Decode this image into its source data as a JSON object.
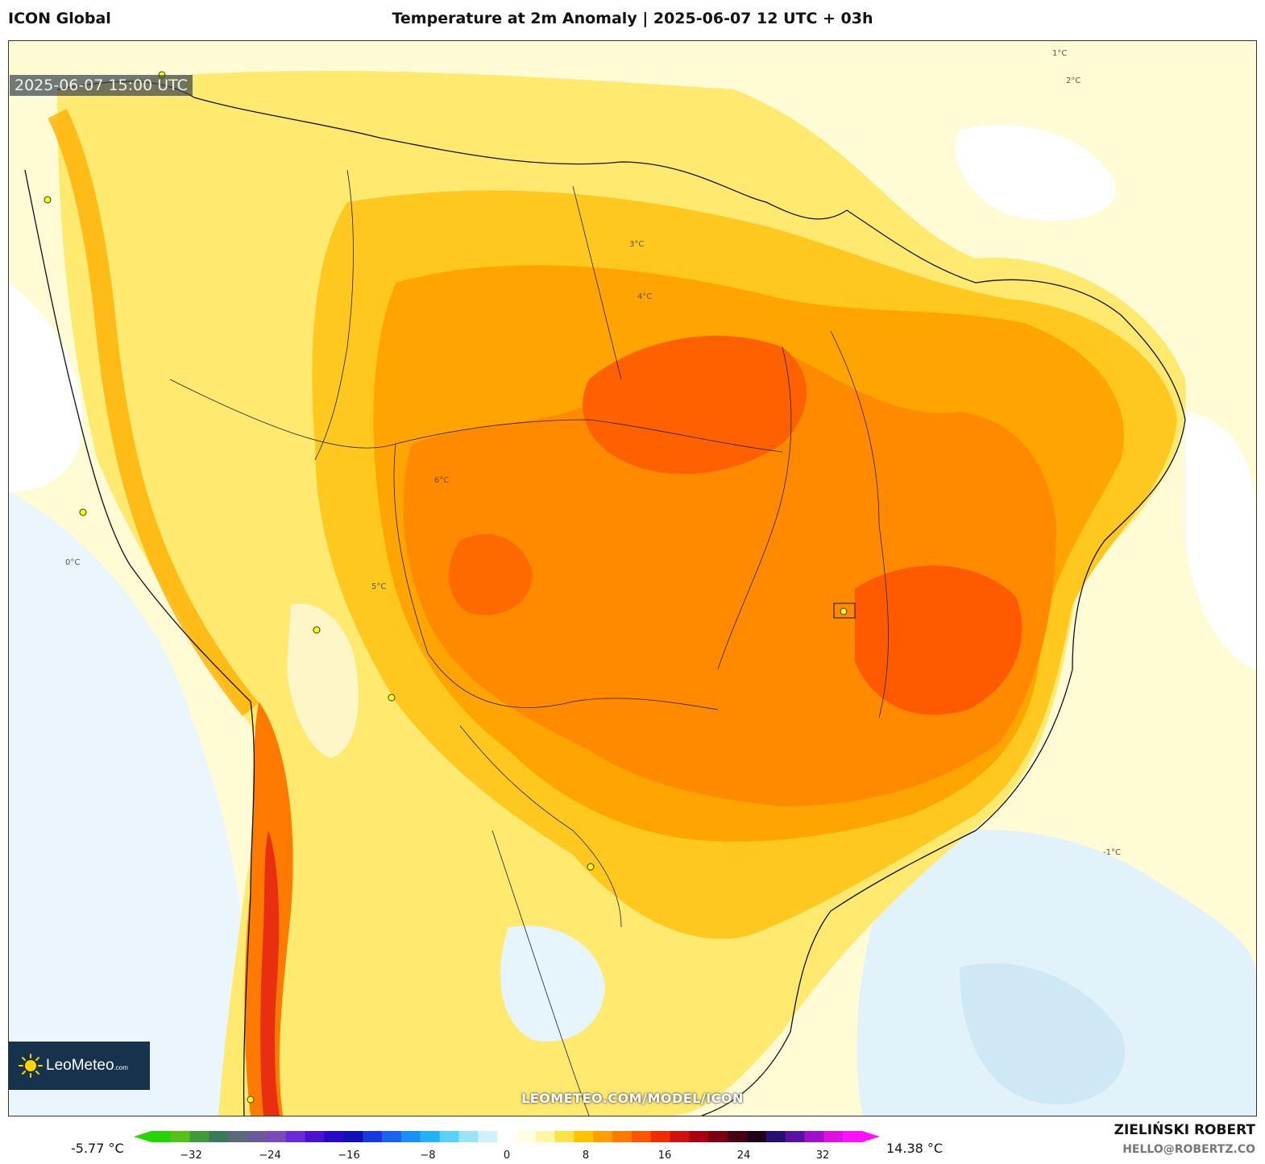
{
  "header": {
    "model": "ICON Global",
    "title": "Temperature at 2m Anomaly | 2025-06-07 12 UTC + 03h"
  },
  "map": {
    "valid_time": "2025-06-07 15:00 UTC",
    "watermark": "LEOMETEO.COM/MODEL/ICON",
    "contour_labels": [
      "0°C",
      "1°C",
      "2°C",
      "3°C",
      "4°C",
      "5°C",
      "6°C",
      "-1°C"
    ]
  },
  "logo": {
    "brand": "LeoMeteo",
    "suffix": ".com",
    "icon": "sun-icon"
  },
  "colorbar": {
    "min_label": "-5.77 °C",
    "max_label": "14.38 °C",
    "ticks": [
      "−32",
      "−24",
      "−16",
      "−8",
      "0",
      "8",
      "16",
      "24",
      "32"
    ],
    "range": [
      -36,
      36
    ],
    "colors": [
      "#28d400",
      "#54c21a",
      "#3f9a3a",
      "#3a7a5a",
      "#5a6a7a",
      "#6a5a9a",
      "#7a4ab8",
      "#6a2ad8",
      "#4a12d0",
      "#2a0ac8",
      "#1010b8",
      "#1a38e0",
      "#1c62f0",
      "#1a90f4",
      "#20b4f6",
      "#58d0f8",
      "#9ae4fa",
      "#d0f0fc",
      "#ffffff",
      "#ffffe0",
      "#fff4a8",
      "#ffe14a",
      "#ffc300",
      "#ff9e00",
      "#ff7a00",
      "#ff5400",
      "#f02c00",
      "#d01010",
      "#a80010",
      "#780010",
      "#480010",
      "#200018",
      "#281070",
      "#5a10a0",
      "#a010c8",
      "#e010e0",
      "#ff10ff"
    ]
  },
  "credit": {
    "author": "ZIELIŃSKI ROBERT",
    "email": "HELLO@ROBERTZ.CO"
  }
}
